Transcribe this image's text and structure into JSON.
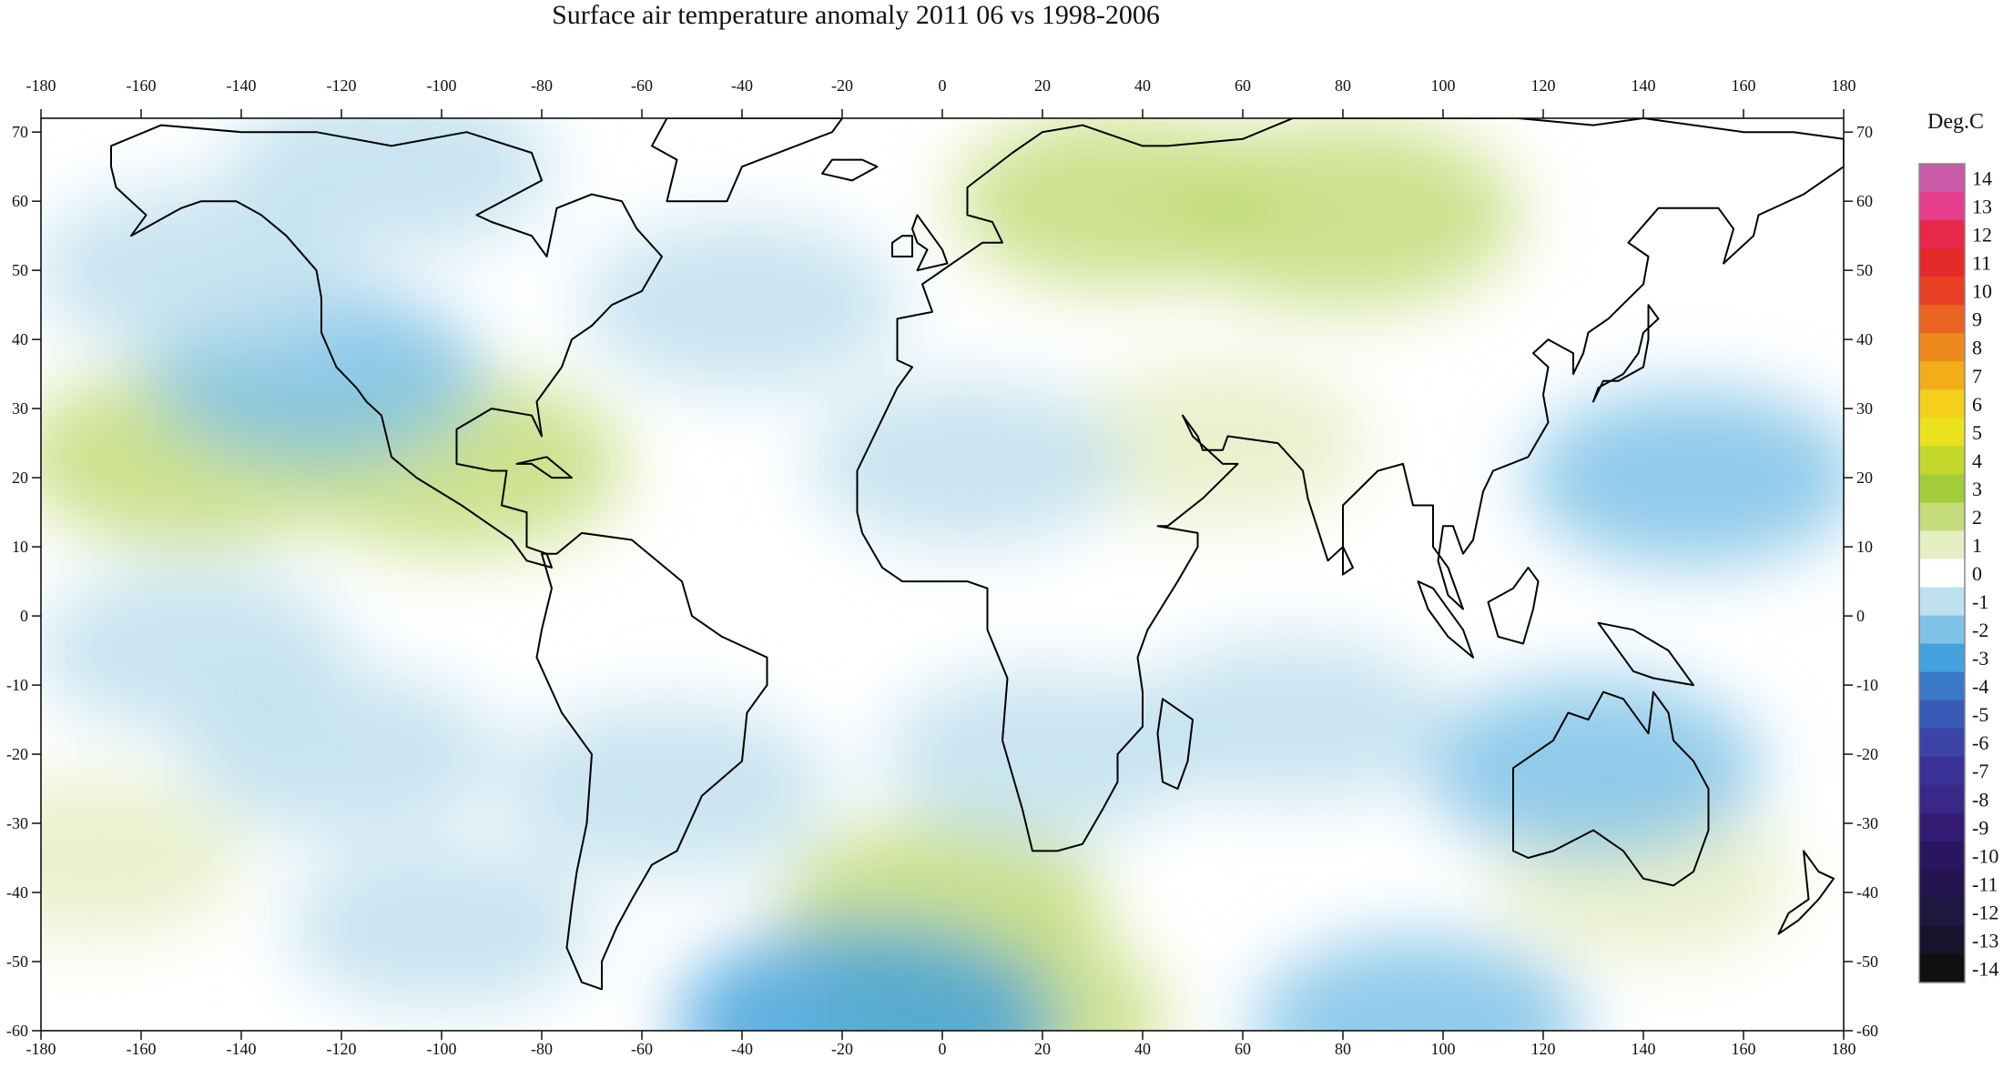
{
  "title": "Surface air temperature anomaly 2011 06 vs 1998-2006",
  "map": {
    "projection": "equirectangular",
    "lon_range": [
      -180,
      180
    ],
    "lat_range": [
      -60,
      72
    ],
    "lon_ticks": [
      -180,
      -160,
      -140,
      -120,
      -100,
      -80,
      -60,
      -40,
      -20,
      0,
      20,
      40,
      60,
      80,
      100,
      120,
      140,
      160,
      180
    ],
    "lat_ticks": [
      -60,
      -50,
      -40,
      -30,
      -20,
      -10,
      0,
      10,
      20,
      30,
      40,
      50,
      60,
      70
    ],
    "coastlines": true,
    "anomaly_regions": [
      {
        "name": "western-siberia-warm",
        "lon": 80,
        "lat": 58,
        "value": 2.2
      },
      {
        "name": "scandinavia-russia-warm",
        "lon": 35,
        "lat": 60,
        "value": 1.5
      },
      {
        "name": "central-asia-warm",
        "lon": 55,
        "lat": 25,
        "value": 0.8
      },
      {
        "name": "texas-gulf-warm",
        "lon": -97,
        "lat": 22,
        "value": 1.8
      },
      {
        "name": "hawaii-region-warm",
        "lon": -150,
        "lat": 23,
        "value": 2.0
      },
      {
        "name": "southern-ocean-atlantic-warm",
        "lon": 0,
        "lat": -42,
        "value": 1.5
      },
      {
        "name": "antarctic-coast-atlantic-warm",
        "lon": 10,
        "lat": -58,
        "value": 2.0
      },
      {
        "name": "eastern-pacific-south-warm",
        "lon": -170,
        "lat": -35,
        "value": 0.8
      },
      {
        "name": "australia-east-warm",
        "lon": 140,
        "lat": -38,
        "value": 0.7
      },
      {
        "name": "northeast-pacific-cold",
        "lon": -125,
        "lat": 35,
        "value": -1.6
      },
      {
        "name": "north-atlantic-cold",
        "lon": -40,
        "lat": 45,
        "value": -1.4
      },
      {
        "name": "canada-arctic-cold",
        "lon": -110,
        "lat": 65,
        "value": -1.5
      },
      {
        "name": "alaska-cold",
        "lon": -150,
        "lat": 50,
        "value": -1.2
      },
      {
        "name": "western-pacific-cold",
        "lon": 150,
        "lat": 20,
        "value": -1.7
      },
      {
        "name": "australia-cold",
        "lon": 130,
        "lat": -22,
        "value": -1.8
      },
      {
        "name": "southern-africa-cold",
        "lon": 20,
        "lat": -20,
        "value": -1.3
      },
      {
        "name": "south-america-east-cold",
        "lon": -55,
        "lat": -25,
        "value": -1.5
      },
      {
        "name": "south-pacific-cold",
        "lon": -120,
        "lat": -20,
        "value": -1.2
      },
      {
        "name": "southeast-pacific-cold",
        "lon": -100,
        "lat": -45,
        "value": -1.0
      },
      {
        "name": "antarctic-coast-cold",
        "lon": -15,
        "lat": -59,
        "value": -3.0
      },
      {
        "name": "antarctic-coast-cold-east",
        "lon": 95,
        "lat": -59,
        "value": -1.6
      },
      {
        "name": "mediterranean-north-africa-cold",
        "lon": 5,
        "lat": 22,
        "value": -1.2
      },
      {
        "name": "indian-ocean-cold",
        "lon": 70,
        "lat": -15,
        "value": -1.0
      },
      {
        "name": "equatorial-pacific-cold",
        "lon": -150,
        "lat": -5,
        "value": -1.1
      }
    ]
  },
  "colorbar": {
    "unit": "Deg.C",
    "levels": [
      "14",
      "13",
      "12",
      "11",
      "10",
      "9",
      "8",
      "7",
      "6",
      "5",
      "4",
      "3",
      "2",
      "1",
      "0",
      "-1",
      "-2",
      "-3",
      "-4",
      "-5",
      "-6",
      "-7",
      "-8",
      "-9",
      "-10",
      "-11",
      "-12",
      "-13",
      "-14"
    ],
    "colors": [
      "#c85aa8",
      "#e63c8c",
      "#e8284a",
      "#e52a2a",
      "#e84024",
      "#ea6420",
      "#ee8a1c",
      "#f2ae18",
      "#f4d01c",
      "#eae21e",
      "#c4d82c",
      "#a2cc3a",
      "#c4dc7a",
      "#e6eec4",
      "#ffffff",
      "#bfe0ee",
      "#7ec2e8",
      "#44a2dc",
      "#3a78c8",
      "#3a5ab8",
      "#3c44a8",
      "#3a3296",
      "#3a2888",
      "#341c74",
      "#2a1660",
      "#241450",
      "#1c1840",
      "#16142a",
      "#101010"
    ]
  }
}
